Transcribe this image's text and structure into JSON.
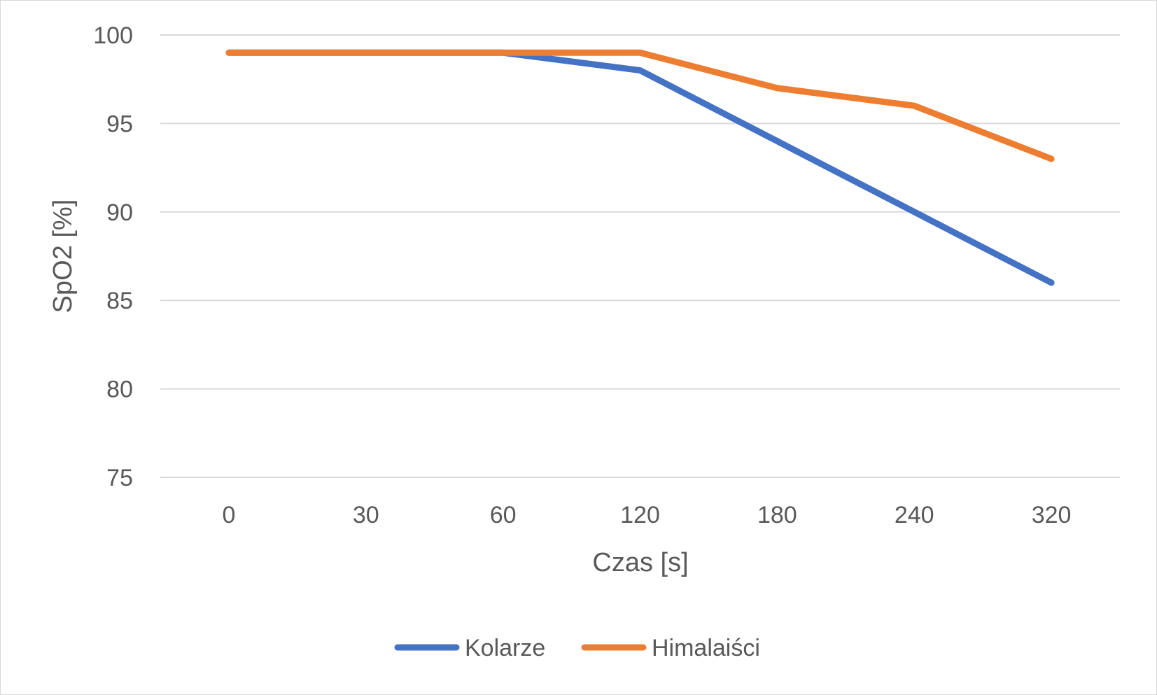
{
  "chart_data": {
    "type": "line",
    "title": "",
    "xlabel": "Czas [s]",
    "ylabel": "SpO2 [%]",
    "categories": [
      "0",
      "30",
      "60",
      "120",
      "180",
      "240",
      "320"
    ],
    "series": [
      {
        "name": "Kolarze",
        "color": "#4472c4",
        "values": [
          99,
          99,
          99,
          98,
          94,
          90,
          86
        ]
      },
      {
        "name": "Himalaiści",
        "color": "#ed7d31",
        "values": [
          99,
          99,
          99,
          99,
          97,
          96,
          93
        ]
      }
    ],
    "ylim": [
      75,
      100
    ],
    "yticks": [
      75,
      80,
      85,
      90,
      95,
      100
    ],
    "grid": true,
    "legend_position": "bottom"
  }
}
